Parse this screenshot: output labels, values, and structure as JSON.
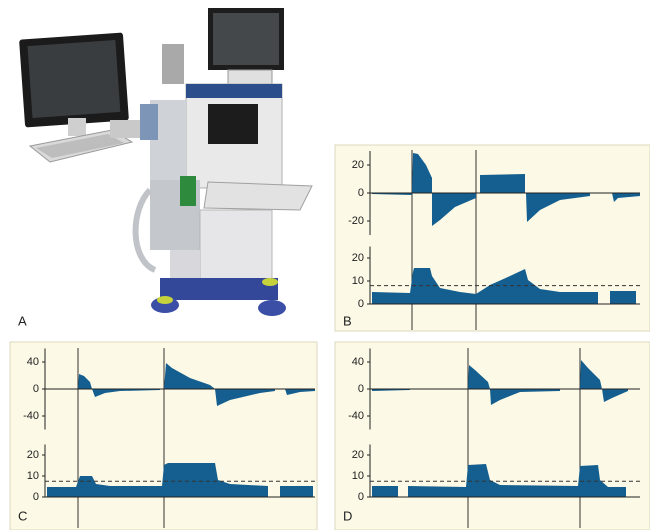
{
  "figure": {
    "photo_label": "A",
    "panels": [
      {
        "label": "B",
        "flow": {
          "ylim": [
            -30,
            30
          ],
          "yticks": [
            20,
            0,
            -20
          ]
        },
        "pressure": {
          "ylim": [
            0,
            25
          ],
          "yticks": [
            20,
            10,
            0
          ],
          "reference": 8
        }
      },
      {
        "label": "C",
        "flow": {
          "ylim": [
            -60,
            60
          ],
          "yticks": [
            40,
            0,
            -40
          ]
        },
        "pressure": {
          "ylim": [
            0,
            25
          ],
          "yticks": [
            20,
            10,
            0
          ],
          "reference": 7.5
        }
      },
      {
        "label": "D",
        "flow": {
          "ylim": [
            -60,
            60
          ],
          "yticks": [
            40,
            0,
            -40
          ]
        },
        "pressure": {
          "ylim": [
            0,
            25
          ],
          "yticks": [
            20,
            10,
            0
          ],
          "reference": 7.5
        }
      }
    ]
  }
}
